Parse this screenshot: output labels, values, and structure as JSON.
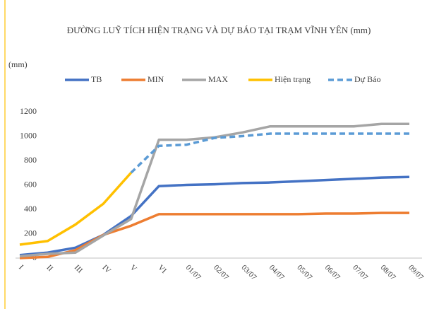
{
  "chart_data": {
    "type": "line",
    "title": "ĐƯỜNG LUỸ TÍCH HIỆN TRẠNG VÀ DỰ BÁO TẠI TRẠM VĨNH YÊN (mm)",
    "y_label": "(mm)",
    "categories": [
      "I",
      "II",
      "III",
      "IV",
      "V",
      "VI",
      "01/07",
      "02/07",
      "03/07",
      "04/07",
      "05/07",
      "06/07",
      "07/07",
      "08/07",
      "09/07"
    ],
    "series": [
      {
        "name": "TB",
        "color": "#4472c4",
        "dash": false,
        "values": [
          25,
          45,
          85,
          190,
          345,
          590,
          600,
          605,
          615,
          620,
          630,
          640,
          650,
          660,
          665
        ]
      },
      {
        "name": "MIN",
        "color": "#ed7d31",
        "dash": false,
        "values": [
          0,
          10,
          65,
          190,
          265,
          360,
          360,
          360,
          360,
          360,
          360,
          365,
          365,
          370,
          370
        ]
      },
      {
        "name": "MAX",
        "color": "#a5a5a5",
        "dash": false,
        "values": [
          15,
          35,
          45,
          185,
          320,
          970,
          970,
          990,
          1030,
          1080,
          1080,
          1080,
          1080,
          1100,
          1100
        ]
      },
      {
        "name": "Hiện trạng",
        "color": "#ffc000",
        "dash": false,
        "values": [
          110,
          140,
          275,
          445,
          700,
          null,
          null,
          null,
          null,
          null,
          null,
          null,
          null,
          null,
          null
        ]
      },
      {
        "name": "Dự Báo",
        "color": "#5b9bd5",
        "dash": true,
        "values": [
          null,
          null,
          null,
          null,
          700,
          920,
          930,
          985,
          1000,
          1020,
          1020,
          1020,
          1020,
          1020,
          1020
        ]
      }
    ],
    "ylim": [
      0,
      1200
    ],
    "yticks": [
      0,
      200,
      400,
      600,
      800,
      1000,
      1200
    ],
    "grid": false
  }
}
